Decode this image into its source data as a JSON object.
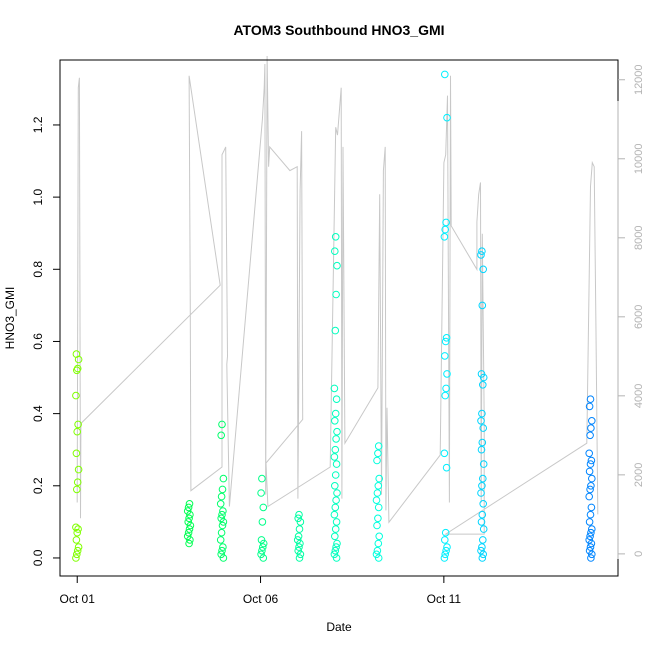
{
  "chart_data": {
    "type": "scatter",
    "title": "ATOM3 Southbound HNO3_GMI",
    "xlabel": "Date",
    "ylabel": "HNO3_GMI",
    "x_ticks": [
      "Oct 01",
      "Oct 06",
      "Oct 11"
    ],
    "x_tick_days": [
      1,
      6,
      11
    ],
    "xlim_days": [
      0.53,
      15.75
    ],
    "ylim": [
      -0.05,
      1.38
    ],
    "y_ticks": [
      "0.0",
      "0.2",
      "0.4",
      "0.6",
      "0.8",
      "1.0",
      "1.2"
    ],
    "y_tick_values": [
      0,
      0.2,
      0.4,
      0.6,
      0.8,
      1.0,
      1.2
    ],
    "y2_ticks": [
      "0",
      "2000",
      "4000",
      "6000",
      "8000",
      "10000",
      "12000"
    ],
    "y2_tick_values": [
      0,
      2000,
      4000,
      6000,
      8000,
      10000,
      12000
    ],
    "y2lim": [
      -560,
      12500
    ],
    "grid": false,
    "legend": "none",
    "colors": {
      "altitude_trace": "#c8c8c8",
      "frame": "#000000",
      "right_axis": "#b3b3b3",
      "gradient": [
        "#80ff00",
        "#00ff40",
        "#00ff80",
        "#00ffc0",
        "#00ffff",
        "#00c0ff",
        "#0080ff"
      ]
    },
    "altitude_series": {
      "name": "",
      "points": [
        [
          1.0,
          1300
        ],
        [
          1.03,
          11800
        ],
        [
          1.06,
          12050
        ],
        [
          1.09,
          900
        ],
        [
          1.1,
          3300
        ],
        [
          4.9,
          6800
        ],
        [
          4.05,
          12100
        ],
        [
          4.08,
          6700
        ],
        [
          4.1,
          1600
        ],
        [
          4.95,
          2200
        ],
        [
          4.95,
          10100
        ],
        [
          5.0,
          10200
        ],
        [
          5.05,
          10300
        ],
        [
          5.1,
          5000
        ],
        [
          5.08,
          4800
        ],
        [
          5.15,
          1200
        ],
        [
          6.05,
          11000
        ],
        [
          6.1,
          11800
        ],
        [
          6.12,
          12400
        ],
        [
          6.14,
          1500
        ],
        [
          6.18,
          12600
        ],
        [
          6.22,
          9800
        ],
        [
          6.25,
          10300
        ],
        [
          6.8,
          9700
        ],
        [
          7.0,
          9800
        ],
        [
          7.02,
          1400
        ],
        [
          7.08,
          9200
        ],
        [
          7.12,
          10700
        ],
        [
          7.15,
          3400
        ],
        [
          6.15,
          2300
        ],
        [
          6.2,
          1200
        ],
        [
          7.9,
          2200
        ],
        [
          8.05,
          10800
        ],
        [
          8.1,
          10600
        ],
        [
          8.2,
          11800
        ],
        [
          8.22,
          1400
        ],
        [
          8.25,
          10300
        ],
        [
          8.3,
          2800
        ],
        [
          9.2,
          4200
        ],
        [
          9.25,
          9100
        ],
        [
          9.3,
          1500
        ],
        [
          9.35,
          9700
        ],
        [
          9.4,
          10300
        ],
        [
          9.42,
          1100
        ],
        [
          9.45,
          3700
        ],
        [
          9.5,
          800
        ],
        [
          10.9,
          2500
        ],
        [
          11.0,
          9900
        ],
        [
          11.05,
          10100
        ],
        [
          11.1,
          11600
        ],
        [
          11.15,
          1300
        ],
        [
          11.18,
          12100
        ],
        [
          11.2,
          8300
        ],
        [
          11.9,
          7200
        ],
        [
          11.9,
          8400
        ],
        [
          11.95,
          9100
        ],
        [
          12.0,
          9400
        ],
        [
          12.02,
          1300
        ],
        [
          12.05,
          8100
        ],
        [
          12.1,
          3400
        ],
        [
          12.1,
          500
        ],
        [
          11.05,
          500
        ],
        [
          14.9,
          2800
        ],
        [
          15.0,
          9300
        ],
        [
          15.05,
          9900
        ],
        [
          15.1,
          9800
        ],
        [
          15.15,
          5600
        ],
        [
          15.2,
          1000
        ]
      ]
    },
    "points": [
      {
        "x": 1.0,
        "y": 0.0
      },
      {
        "x": 1.0,
        "y": 0.01
      },
      {
        "x": 1.0,
        "y": 0.02
      },
      {
        "x": 1.0,
        "y": 0.03
      },
      {
        "x": 1.0,
        "y": 0.05
      },
      {
        "x": 1.0,
        "y": 0.07
      },
      {
        "x": 1.0,
        "y": 0.08
      },
      {
        "x": 1.0,
        "y": 0.085
      },
      {
        "x": 1.0,
        "y": 0.19
      },
      {
        "x": 1.0,
        "y": 0.21
      },
      {
        "x": 1.0,
        "y": 0.245
      },
      {
        "x": 1.0,
        "y": 0.29
      },
      {
        "x": 1.0,
        "y": 0.35
      },
      {
        "x": 1.0,
        "y": 0.37
      },
      {
        "x": 1.0,
        "y": 0.45
      },
      {
        "x": 1.0,
        "y": 0.52
      },
      {
        "x": 1.0,
        "y": 0.525
      },
      {
        "x": 1.0,
        "y": 0.55
      },
      {
        "x": 1.0,
        "y": 0.565
      },
      {
        "x": 4.05,
        "y": 0.04
      },
      {
        "x": 4.05,
        "y": 0.05
      },
      {
        "x": 4.05,
        "y": 0.06
      },
      {
        "x": 4.05,
        "y": 0.07
      },
      {
        "x": 4.05,
        "y": 0.08
      },
      {
        "x": 4.05,
        "y": 0.09
      },
      {
        "x": 4.05,
        "y": 0.1
      },
      {
        "x": 4.05,
        "y": 0.11
      },
      {
        "x": 4.05,
        "y": 0.12
      },
      {
        "x": 4.05,
        "y": 0.13
      },
      {
        "x": 4.05,
        "y": 0.14
      },
      {
        "x": 4.05,
        "y": 0.15
      },
      {
        "x": 4.95,
        "y": 0.0
      },
      {
        "x": 4.95,
        "y": 0.01
      },
      {
        "x": 4.95,
        "y": 0.02
      },
      {
        "x": 4.95,
        "y": 0.03
      },
      {
        "x": 4.95,
        "y": 0.05
      },
      {
        "x": 4.95,
        "y": 0.07
      },
      {
        "x": 4.95,
        "y": 0.09
      },
      {
        "x": 4.95,
        "y": 0.1
      },
      {
        "x": 4.95,
        "y": 0.11
      },
      {
        "x": 4.95,
        "y": 0.12
      },
      {
        "x": 4.95,
        "y": 0.13
      },
      {
        "x": 4.95,
        "y": 0.15
      },
      {
        "x": 4.95,
        "y": 0.17
      },
      {
        "x": 4.95,
        "y": 0.19
      },
      {
        "x": 4.95,
        "y": 0.22
      },
      {
        "x": 4.95,
        "y": 0.34
      },
      {
        "x": 4.95,
        "y": 0.37
      },
      {
        "x": 6.05,
        "y": 0.0
      },
      {
        "x": 6.05,
        "y": 0.01
      },
      {
        "x": 6.05,
        "y": 0.02
      },
      {
        "x": 6.05,
        "y": 0.03
      },
      {
        "x": 6.05,
        "y": 0.04
      },
      {
        "x": 6.05,
        "y": 0.05
      },
      {
        "x": 6.05,
        "y": 0.1
      },
      {
        "x": 6.05,
        "y": 0.14
      },
      {
        "x": 6.05,
        "y": 0.18
      },
      {
        "x": 6.05,
        "y": 0.22
      },
      {
        "x": 7.05,
        "y": 0.0
      },
      {
        "x": 7.05,
        "y": 0.01
      },
      {
        "x": 7.05,
        "y": 0.02
      },
      {
        "x": 7.05,
        "y": 0.03
      },
      {
        "x": 7.05,
        "y": 0.04
      },
      {
        "x": 7.05,
        "y": 0.05
      },
      {
        "x": 7.05,
        "y": 0.06
      },
      {
        "x": 7.05,
        "y": 0.08
      },
      {
        "x": 7.05,
        "y": 0.1
      },
      {
        "x": 7.05,
        "y": 0.11
      },
      {
        "x": 7.05,
        "y": 0.12
      },
      {
        "x": 8.05,
        "y": 0.0
      },
      {
        "x": 8.05,
        "y": 0.01
      },
      {
        "x": 8.05,
        "y": 0.02
      },
      {
        "x": 8.05,
        "y": 0.03
      },
      {
        "x": 8.05,
        "y": 0.04
      },
      {
        "x": 8.05,
        "y": 0.06
      },
      {
        "x": 8.05,
        "y": 0.08
      },
      {
        "x": 8.05,
        "y": 0.1
      },
      {
        "x": 8.05,
        "y": 0.12
      },
      {
        "x": 8.05,
        "y": 0.14
      },
      {
        "x": 8.05,
        "y": 0.16
      },
      {
        "x": 8.05,
        "y": 0.18
      },
      {
        "x": 8.05,
        "y": 0.2
      },
      {
        "x": 8.05,
        "y": 0.23
      },
      {
        "x": 8.05,
        "y": 0.26
      },
      {
        "x": 8.05,
        "y": 0.28
      },
      {
        "x": 8.05,
        "y": 0.3
      },
      {
        "x": 8.05,
        "y": 0.33
      },
      {
        "x": 8.05,
        "y": 0.35
      },
      {
        "x": 8.05,
        "y": 0.38
      },
      {
        "x": 8.05,
        "y": 0.4
      },
      {
        "x": 8.05,
        "y": 0.44
      },
      {
        "x": 8.05,
        "y": 0.47
      },
      {
        "x": 8.05,
        "y": 0.63
      },
      {
        "x": 8.05,
        "y": 0.73
      },
      {
        "x": 8.05,
        "y": 0.81
      },
      {
        "x": 8.05,
        "y": 0.85
      },
      {
        "x": 8.05,
        "y": 0.89
      },
      {
        "x": 9.2,
        "y": 0.0
      },
      {
        "x": 9.2,
        "y": 0.01
      },
      {
        "x": 9.2,
        "y": 0.02
      },
      {
        "x": 9.2,
        "y": 0.04
      },
      {
        "x": 9.2,
        "y": 0.06
      },
      {
        "x": 9.2,
        "y": 0.09
      },
      {
        "x": 9.2,
        "y": 0.11
      },
      {
        "x": 9.2,
        "y": 0.14
      },
      {
        "x": 9.2,
        "y": 0.16
      },
      {
        "x": 9.2,
        "y": 0.18
      },
      {
        "x": 9.2,
        "y": 0.2
      },
      {
        "x": 9.2,
        "y": 0.22
      },
      {
        "x": 9.2,
        "y": 0.27
      },
      {
        "x": 9.2,
        "y": 0.29
      },
      {
        "x": 9.2,
        "y": 0.31
      },
      {
        "x": 11.05,
        "y": 0.0
      },
      {
        "x": 11.05,
        "y": 0.01
      },
      {
        "x": 11.05,
        "y": 0.02
      },
      {
        "x": 11.05,
        "y": 0.03
      },
      {
        "x": 11.05,
        "y": 0.05
      },
      {
        "x": 11.05,
        "y": 0.07
      },
      {
        "x": 11.05,
        "y": 0.25
      },
      {
        "x": 11.05,
        "y": 0.29
      },
      {
        "x": 11.05,
        "y": 0.45
      },
      {
        "x": 11.05,
        "y": 0.47
      },
      {
        "x": 11.05,
        "y": 0.51
      },
      {
        "x": 11.05,
        "y": 0.56
      },
      {
        "x": 11.05,
        "y": 0.6
      },
      {
        "x": 11.05,
        "y": 0.61
      },
      {
        "x": 11.05,
        "y": 0.89
      },
      {
        "x": 11.05,
        "y": 0.91
      },
      {
        "x": 11.05,
        "y": 0.93
      },
      {
        "x": 11.05,
        "y": 1.22
      },
      {
        "x": 11.05,
        "y": 1.34
      },
      {
        "x": 12.05,
        "y": 0.0
      },
      {
        "x": 12.05,
        "y": 0.01
      },
      {
        "x": 12.05,
        "y": 0.02
      },
      {
        "x": 12.05,
        "y": 0.03
      },
      {
        "x": 12.05,
        "y": 0.05
      },
      {
        "x": 12.05,
        "y": 0.08
      },
      {
        "x": 12.05,
        "y": 0.1
      },
      {
        "x": 12.05,
        "y": 0.12
      },
      {
        "x": 12.05,
        "y": 0.15
      },
      {
        "x": 12.05,
        "y": 0.18
      },
      {
        "x": 12.05,
        "y": 0.2
      },
      {
        "x": 12.05,
        "y": 0.22
      },
      {
        "x": 12.05,
        "y": 0.26
      },
      {
        "x": 12.05,
        "y": 0.3
      },
      {
        "x": 12.05,
        "y": 0.32
      },
      {
        "x": 12.05,
        "y": 0.36
      },
      {
        "x": 12.05,
        "y": 0.38
      },
      {
        "x": 12.05,
        "y": 0.4
      },
      {
        "x": 12.05,
        "y": 0.48
      },
      {
        "x": 12.05,
        "y": 0.5
      },
      {
        "x": 12.05,
        "y": 0.51
      },
      {
        "x": 12.05,
        "y": 0.7
      },
      {
        "x": 12.05,
        "y": 0.8
      },
      {
        "x": 12.05,
        "y": 0.84
      },
      {
        "x": 12.05,
        "y": 0.85
      },
      {
        "x": 15.0,
        "y": 0.0
      },
      {
        "x": 15.0,
        "y": 0.01
      },
      {
        "x": 15.0,
        "y": 0.02
      },
      {
        "x": 15.0,
        "y": 0.03
      },
      {
        "x": 15.0,
        "y": 0.04
      },
      {
        "x": 15.0,
        "y": 0.05
      },
      {
        "x": 15.0,
        "y": 0.06
      },
      {
        "x": 15.0,
        "y": 0.07
      },
      {
        "x": 15.0,
        "y": 0.08
      },
      {
        "x": 15.0,
        "y": 0.1
      },
      {
        "x": 15.0,
        "y": 0.12
      },
      {
        "x": 15.0,
        "y": 0.14
      },
      {
        "x": 15.0,
        "y": 0.17
      },
      {
        "x": 15.0,
        "y": 0.19
      },
      {
        "x": 15.0,
        "y": 0.2
      },
      {
        "x": 15.0,
        "y": 0.22
      },
      {
        "x": 15.0,
        "y": 0.24
      },
      {
        "x": 15.0,
        "y": 0.26
      },
      {
        "x": 15.0,
        "y": 0.27
      },
      {
        "x": 15.0,
        "y": 0.29
      },
      {
        "x": 15.0,
        "y": 0.34
      },
      {
        "x": 15.0,
        "y": 0.36
      },
      {
        "x": 15.0,
        "y": 0.38
      },
      {
        "x": 15.0,
        "y": 0.42
      },
      {
        "x": 15.0,
        "y": 0.44
      }
    ]
  }
}
